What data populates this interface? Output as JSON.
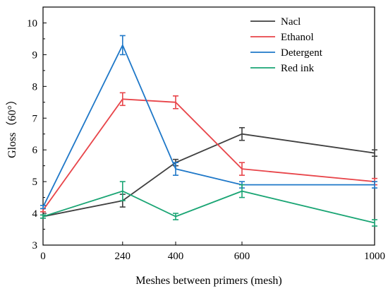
{
  "chart_data": {
    "type": "line",
    "title": "",
    "xlabel": "Meshes between primers (mesh)",
    "ylabel": "Gloss（60°）",
    "x": [
      0,
      240,
      400,
      600,
      1000
    ],
    "x_tick_labels": [
      "0",
      "240",
      "400",
      "600",
      "1000"
    ],
    "ylim": [
      3,
      10.5
    ],
    "y_ticks": [
      3,
      4,
      5,
      6,
      7,
      8,
      9,
      10
    ],
    "y_tick_labels": [
      "3",
      "4",
      "5",
      "6",
      "7",
      "8",
      "9",
      "10"
    ],
    "grid": false,
    "legend_position": "top-right",
    "series": [
      {
        "name": "Nacl",
        "color": "#404040",
        "values": [
          3.9,
          4.4,
          5.6,
          6.5,
          5.9
        ],
        "errors": [
          0.05,
          0.2,
          0.1,
          0.2,
          0.1
        ]
      },
      {
        "name": "Ethanol",
        "color": "#e8454a",
        "values": [
          4.1,
          7.6,
          7.5,
          5.4,
          5.0
        ],
        "errors": [
          0.05,
          0.2,
          0.2,
          0.2,
          0.1
        ]
      },
      {
        "name": "Detergent",
        "color": "#1f78c8",
        "values": [
          4.2,
          9.3,
          5.4,
          4.9,
          4.9
        ],
        "errors": [
          0.05,
          0.3,
          0.2,
          0.1,
          0.1
        ]
      },
      {
        "name": "Red ink",
        "color": "#1aa574",
        "values": [
          3.9,
          4.7,
          3.9,
          4.7,
          3.7
        ],
        "errors": [
          0.05,
          0.3,
          0.1,
          0.2,
          0.1
        ]
      }
    ]
  }
}
